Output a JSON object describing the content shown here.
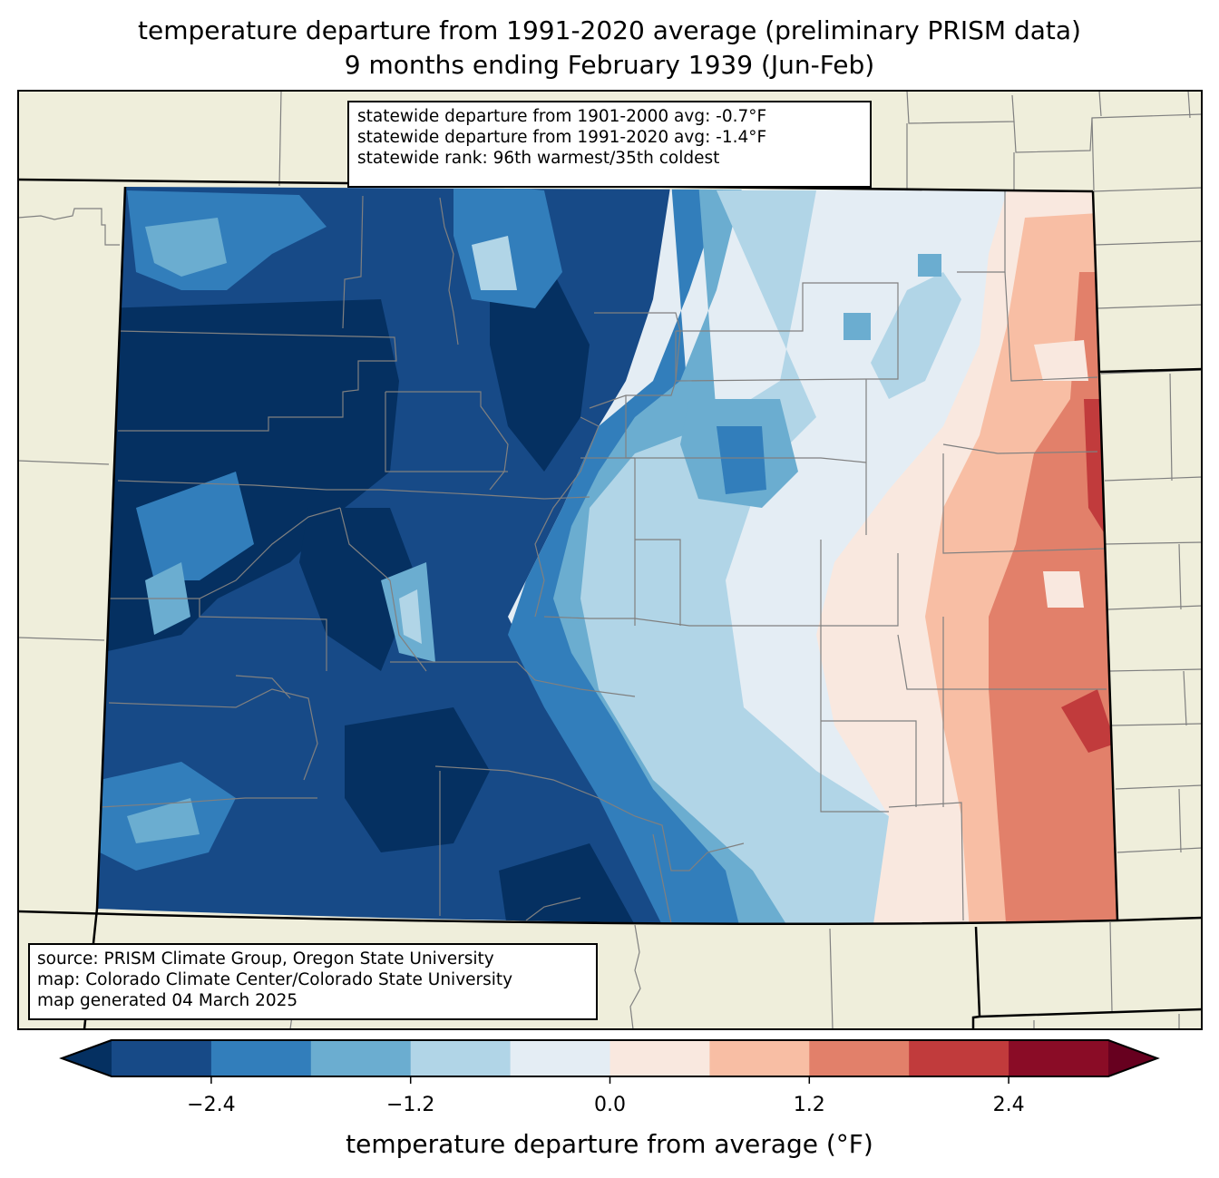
{
  "title": {
    "line1": "temperature departure from 1991-2020 average (preliminary PRISM data)",
    "line2": "9 months ending February 1939 (Jun-Feb)"
  },
  "stats_box": {
    "line1": "statewide departure from 1901-2000 avg: -0.7°F",
    "line2": "statewide departure from 1991-2020 avg: -1.4°F",
    "line3": "statewide rank: 96th warmest/35th coldest"
  },
  "credits_box": {
    "line1": "source: PRISM Climate Group, Oregon State University",
    "line2": "map: Colorado Climate Center/Colorado State University",
    "line3": "map generated 04 March 2025"
  },
  "colorbar": {
    "label": "temperature departure from average (°F)",
    "bounds": [
      -3.0,
      -2.4,
      -1.8,
      -1.2,
      -0.6,
      0.0,
      0.6,
      1.2,
      1.8,
      2.4,
      3.0
    ],
    "ticks": [
      {
        "value": -2.4,
        "label": "−2.4"
      },
      {
        "value": -1.2,
        "label": "−1.2"
      },
      {
        "value": 0.0,
        "label": "0.0"
      },
      {
        "value": 1.2,
        "label": "1.2"
      },
      {
        "value": 2.4,
        "label": "2.4"
      }
    ],
    "under_color": "#053061",
    "over_color": "#67001f",
    "colors": [
      "#174a87",
      "#327ebb",
      "#6badd0",
      "#b1d5e7",
      "#e4edf4",
      "#f9e8df",
      "#f8bea4",
      "#e2806a",
      "#c13b3c",
      "#8a0c26"
    ],
    "extend": "both"
  },
  "map": {
    "land_color": "#efeedb",
    "region": "Colorado"
  },
  "chart_data": {
    "type": "heatmap",
    "title": "temperature departure from 1991-2020 average (preliminary PRISM data)",
    "subtitle": "9 months ending February 1939 (Jun-Feb)",
    "colorbar_label": "temperature departure from average (°F)",
    "value_range": [
      -3.0,
      3.0
    ],
    "pattern": [
      {
        "area": "western Colorado",
        "range_F": "< -2.4"
      },
      {
        "area": "central mountains",
        "range_F": "-2.4 to -1.2"
      },
      {
        "area": "Front Range / eastern plains west",
        "range_F": "-1.2 to 0.0"
      },
      {
        "area": "eastern plains",
        "range_F": "0.0 to 1.2"
      },
      {
        "area": "far eastern border",
        "range_F": "1.2 to 2.4"
      }
    ]
  }
}
